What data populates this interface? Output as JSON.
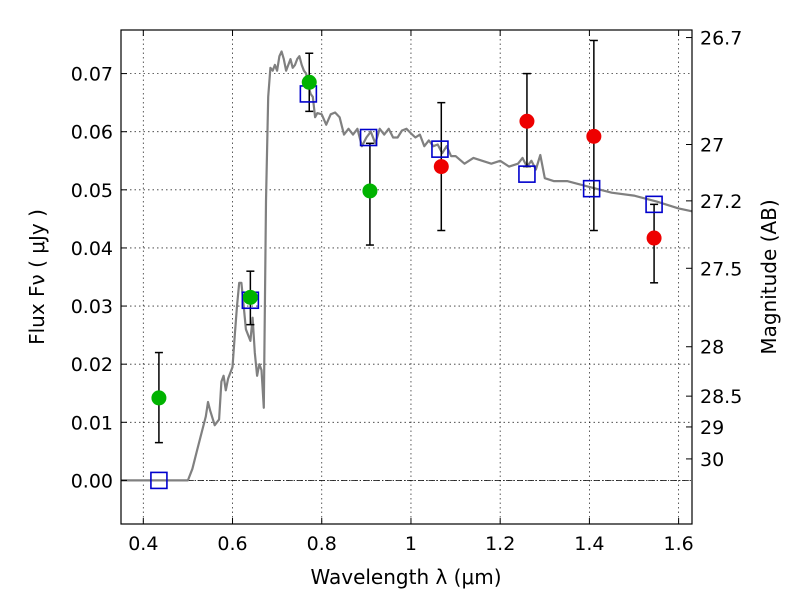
{
  "chart_data": {
    "type": "scatter",
    "xlabel": "Wavelength  λ (μm)",
    "ylabel": "Flux  Fν  ( μJy )",
    "ylabel_right": "Magnitude (AB)",
    "xlim": [
      0.35,
      1.63
    ],
    "ylim": [
      -0.0075,
      0.0775
    ],
    "grid": true,
    "x_ticks": [
      0.4,
      0.6,
      0.8,
      1.0,
      1.2,
      1.4,
      1.6
    ],
    "x_tick_labels": [
      "0.4",
      "0.6",
      "0.8",
      "1",
      "1.2",
      "1.4",
      "1.6"
    ],
    "y_ticks": [
      0.0,
      0.01,
      0.02,
      0.03,
      0.04,
      0.05,
      0.06,
      0.07
    ],
    "y_tick_labels": [
      "0.00",
      "0.01",
      "0.02",
      "0.03",
      "0.04",
      "0.05",
      "0.06",
      "0.07"
    ],
    "right_ticks": [
      {
        "label": "26.7",
        "flux": 0.0762
      },
      {
        "label": "27",
        "flux": 0.0578
      },
      {
        "label": "27.2",
        "flux": 0.0481
      },
      {
        "label": "27.5",
        "flux": 0.0365
      },
      {
        "label": "28",
        "flux": 0.023
      },
      {
        "label": "28.5",
        "flux": 0.0145
      },
      {
        "label": "29",
        "flux": 0.0092
      },
      {
        "label": "30",
        "flux": 0.0037
      }
    ],
    "colors": {
      "model": "#808080",
      "model_points": "#0000cc",
      "green": "#00b300",
      "red": "#ee0000",
      "errorbar": "#000000",
      "zero_line": "#000000"
    },
    "series": [
      {
        "type": "line",
        "x": [
          0.35,
          0.44,
          0.48,
          0.5,
          0.51,
          0.52,
          0.53,
          0.54,
          0.545,
          0.55,
          0.56,
          0.57,
          0.575,
          0.58,
          0.585,
          0.59,
          0.6,
          0.605,
          0.61,
          0.615,
          0.62,
          0.625,
          0.63,
          0.64,
          0.645,
          0.65,
          0.655,
          0.66,
          0.665,
          0.67,
          0.675,
          0.68,
          0.685,
          0.69,
          0.695,
          0.7,
          0.705,
          0.71,
          0.715,
          0.72,
          0.73,
          0.735,
          0.74,
          0.745,
          0.75,
          0.755,
          0.76,
          0.765,
          0.77,
          0.775,
          0.78,
          0.785,
          0.79,
          0.8,
          0.81,
          0.82,
          0.83,
          0.84,
          0.85,
          0.86,
          0.87,
          0.88,
          0.89,
          0.9,
          0.91,
          0.92,
          0.93,
          0.94,
          0.95,
          0.96,
          0.97,
          0.98,
          0.99,
          1.0,
          1.01,
          1.02,
          1.03,
          1.04,
          1.05,
          1.06,
          1.07,
          1.08,
          1.09,
          1.1,
          1.12,
          1.14,
          1.16,
          1.18,
          1.2,
          1.22,
          1.24,
          1.25,
          1.26,
          1.27,
          1.28,
          1.29,
          1.3,
          1.32,
          1.35,
          1.4,
          1.45,
          1.5,
          1.55,
          1.6,
          1.63
        ],
        "y": [
          0.0,
          0.0,
          0.0,
          0.0,
          0.002,
          0.005,
          0.008,
          0.011,
          0.0135,
          0.012,
          0.0095,
          0.0105,
          0.017,
          0.018,
          0.0155,
          0.0175,
          0.0195,
          0.025,
          0.03,
          0.034,
          0.034,
          0.03,
          0.026,
          0.024,
          0.028,
          0.022,
          0.018,
          0.02,
          0.019,
          0.0125,
          0.048,
          0.066,
          0.071,
          0.0705,
          0.0715,
          0.0705,
          0.073,
          0.0738,
          0.0725,
          0.0705,
          0.0725,
          0.071,
          0.0715,
          0.0725,
          0.073,
          0.0715,
          0.0705,
          0.07,
          0.068,
          0.0665,
          0.066,
          0.0625,
          0.0632,
          0.063,
          0.0612,
          0.063,
          0.0633,
          0.0625,
          0.0595,
          0.0605,
          0.0595,
          0.0605,
          0.0575,
          0.059,
          0.06,
          0.058,
          0.0605,
          0.0595,
          0.0605,
          0.059,
          0.059,
          0.0602,
          0.0605,
          0.0597,
          0.059,
          0.0595,
          0.0575,
          0.0585,
          0.0575,
          0.0578,
          0.0563,
          0.0575,
          0.0558,
          0.0558,
          0.0545,
          0.0555,
          0.055,
          0.0545,
          0.055,
          0.054,
          0.0545,
          0.0555,
          0.054,
          0.055,
          0.0535,
          0.056,
          0.052,
          0.0515,
          0.0515,
          0.0505,
          0.0495,
          0.049,
          0.048,
          0.0468,
          0.0463
        ]
      },
      {
        "type": "model_points",
        "x": [
          0.435,
          0.64,
          0.77,
          0.905,
          1.065,
          1.26,
          1.405,
          1.545
        ],
        "y": [
          0.0,
          0.031,
          0.0665,
          0.059,
          0.057,
          0.0527,
          0.0502,
          0.0475
        ]
      },
      {
        "type": "observed_green",
        "x": [
          0.435,
          0.64,
          0.772,
          0.908
        ],
        "y": [
          0.0142,
          0.0315,
          0.0685,
          0.0498
        ],
        "err_low": [
          0.0065,
          0.0268,
          0.0635,
          0.0405
        ],
        "err_high": [
          0.022,
          0.036,
          0.0735,
          0.058
        ]
      },
      {
        "type": "observed_red",
        "x": [
          1.068,
          1.26,
          1.41,
          1.545
        ],
        "y": [
          0.054,
          0.0618,
          0.0592,
          0.0417
        ],
        "err_low": [
          0.043,
          0.054,
          0.043,
          0.034
        ],
        "err_high": [
          0.065,
          0.07,
          0.0757,
          0.0475
        ]
      }
    ]
  }
}
